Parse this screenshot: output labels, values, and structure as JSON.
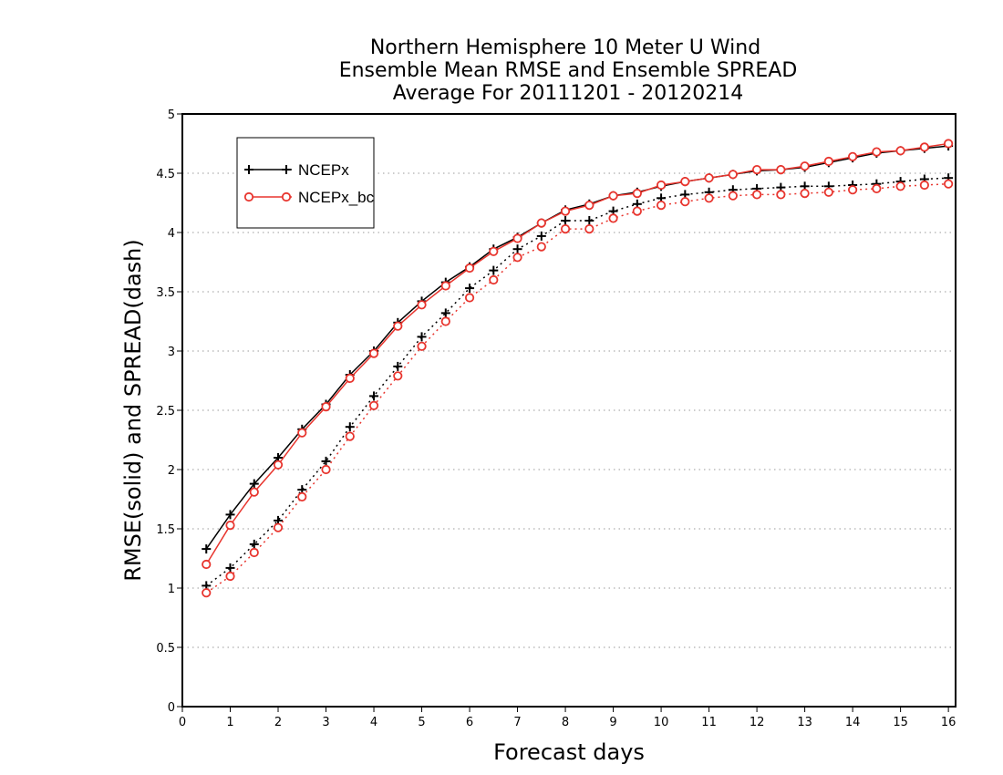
{
  "chart_data": {
    "type": "line",
    "title": [
      "Northern Hemisphere 10 Meter U Wind",
      "Ensemble Mean RMSE and Ensemble SPREAD",
      "Average For 20111201 - 20120214"
    ],
    "xlabel": "Forecast days",
    "ylabel": "RMSE(solid) and SPREAD(dash)",
    "xlim": [
      0,
      16.15
    ],
    "ylim": [
      0,
      5
    ],
    "xticks": [
      "0",
      "1",
      "2",
      "3",
      "4",
      "5",
      "6",
      "7",
      "8",
      "9",
      "10",
      "11",
      "12",
      "13",
      "14",
      "15",
      "16"
    ],
    "yticks": [
      "0",
      "0.5",
      "1",
      "1.5",
      "2",
      "2.5",
      "3",
      "3.5",
      "4",
      "4.5",
      "5"
    ],
    "grid": "horizontal dotted",
    "legend_position": "top-left",
    "x": [
      0.5,
      1,
      1.5,
      2,
      2.5,
      3,
      3.5,
      4,
      4.5,
      5,
      5.5,
      6,
      6.5,
      7,
      7.5,
      8,
      8.5,
      9,
      9.5,
      10,
      10.5,
      11,
      11.5,
      12,
      12.5,
      13,
      13.5,
      14,
      14.5,
      15,
      15.5,
      16
    ],
    "series": [
      {
        "name": "NCEPx",
        "color": "#000000",
        "marker": "plus",
        "rmse": [
          1.33,
          1.62,
          1.88,
          2.1,
          2.34,
          2.55,
          2.8,
          3.0,
          3.24,
          3.42,
          3.58,
          3.71,
          3.86,
          3.96,
          4.08,
          4.19,
          4.24,
          4.31,
          4.34,
          4.39,
          4.43,
          4.46,
          4.49,
          4.52,
          4.53,
          4.55,
          4.59,
          4.63,
          4.67,
          4.69,
          4.71,
          4.73
        ],
        "spread": [
          1.02,
          1.17,
          1.37,
          1.57,
          1.83,
          2.07,
          2.36,
          2.62,
          2.87,
          3.12,
          3.32,
          3.53,
          3.68,
          3.86,
          3.97,
          4.1,
          4.1,
          4.18,
          4.24,
          4.29,
          4.32,
          4.34,
          4.36,
          4.37,
          4.38,
          4.39,
          4.39,
          4.4,
          4.41,
          4.43,
          4.45,
          4.46
        ]
      },
      {
        "name": "NCEPx_bc",
        "color": "#e8352e",
        "marker": "circle",
        "rmse": [
          1.2,
          1.53,
          1.81,
          2.04,
          2.31,
          2.53,
          2.77,
          2.98,
          3.21,
          3.39,
          3.55,
          3.7,
          3.84,
          3.95,
          4.08,
          4.18,
          4.23,
          4.31,
          4.33,
          4.4,
          4.43,
          4.46,
          4.49,
          4.53,
          4.53,
          4.56,
          4.6,
          4.64,
          4.68,
          4.69,
          4.72,
          4.75
        ],
        "spread": [
          0.96,
          1.1,
          1.3,
          1.51,
          1.77,
          2.0,
          2.28,
          2.54,
          2.79,
          3.04,
          3.25,
          3.45,
          3.6,
          3.79,
          3.88,
          4.03,
          4.03,
          4.12,
          4.18,
          4.23,
          4.26,
          4.29,
          4.31,
          4.32,
          4.32,
          4.33,
          4.34,
          4.36,
          4.37,
          4.39,
          4.4,
          4.41
        ]
      }
    ]
  }
}
